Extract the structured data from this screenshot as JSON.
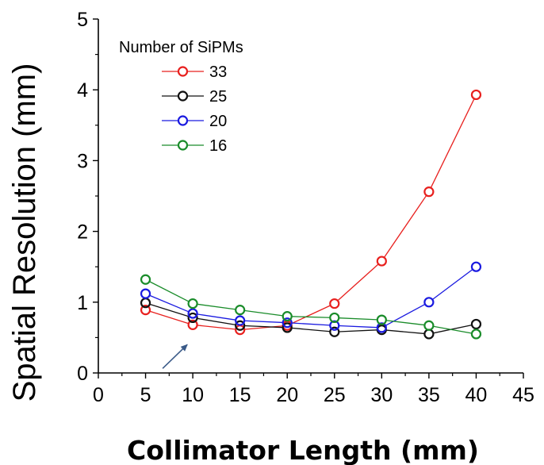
{
  "chart_data": {
    "type": "line",
    "title": "",
    "xlabel": "Collimator Length (mm)",
    "ylabel": "Spatial Resolution (mm)",
    "xlim": [
      0,
      45
    ],
    "ylim": [
      0,
      5
    ],
    "xticks": [
      "0",
      "5",
      "10",
      "15",
      "20",
      "25",
      "30",
      "35",
      "40",
      "45"
    ],
    "yticks": [
      "0",
      "1",
      "2",
      "3",
      "4",
      "5"
    ],
    "grid": false,
    "legend": {
      "title": "Number of SiPMs",
      "position": "top-left"
    },
    "x": [
      5,
      10,
      15,
      20,
      25,
      30,
      35,
      40
    ],
    "series": [
      {
        "name": "33",
        "color": "#e8201e",
        "values": [
          0.89,
          0.68,
          0.61,
          0.67,
          0.98,
          1.58,
          2.56,
          3.93
        ]
      },
      {
        "name": "25",
        "color": "#111111",
        "values": [
          0.99,
          0.78,
          0.67,
          0.64,
          0.58,
          0.61,
          0.55,
          0.69
        ]
      },
      {
        "name": "20",
        "color": "#1a1ae0",
        "values": [
          1.12,
          0.84,
          0.74,
          0.71,
          0.67,
          0.64,
          1.0,
          1.5
        ]
      },
      {
        "name": "16",
        "color": "#1a8c2a",
        "values": [
          1.32,
          0.98,
          0.89,
          0.8,
          0.78,
          0.75,
          0.67,
          0.55
        ]
      }
    ],
    "annotations": [
      {
        "type": "arrow",
        "pointing_to": {
          "x": 10,
          "y": 0.4
        }
      }
    ]
  }
}
